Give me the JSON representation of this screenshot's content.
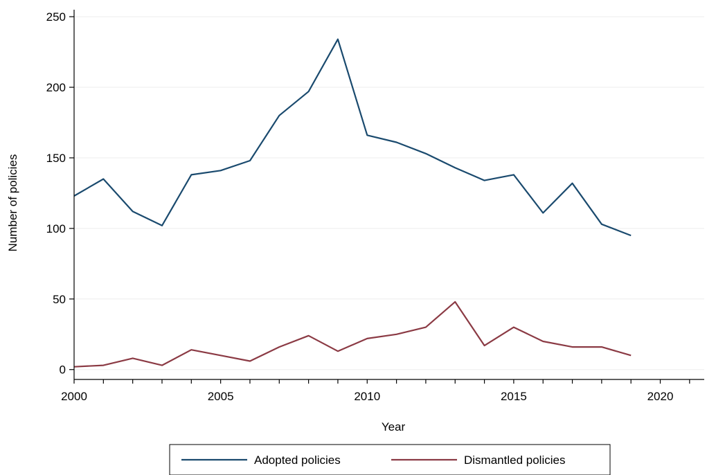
{
  "chart_data": {
    "type": "line",
    "title": "",
    "xlabel": "Year",
    "ylabel": "Number of policies",
    "xlim": [
      2000,
      2021.5
    ],
    "ylim": [
      -7,
      253
    ],
    "x_ticks": [
      2000,
      2005,
      2010,
      2015,
      2020
    ],
    "y_ticks": [
      0,
      50,
      100,
      150,
      200,
      250
    ],
    "grid": "horizontal",
    "legend_position": "bottom",
    "x": [
      2000,
      2001,
      2002,
      2003,
      2004,
      2005,
      2006,
      2007,
      2008,
      2009,
      2010,
      2011,
      2012,
      2013,
      2014,
      2015,
      2016,
      2017,
      2018,
      2019
    ],
    "series": [
      {
        "name": "Adopted policies",
        "color": "#1a4a6e",
        "values": [
          123,
          135,
          112,
          102,
          138,
          141,
          148,
          180,
          197,
          234,
          166,
          161,
          153,
          143,
          134,
          138,
          111,
          132,
          103,
          95
        ]
      },
      {
        "name": "Dismantled policies",
        "color": "#8b3a44",
        "values": [
          2,
          3,
          8,
          3,
          14,
          10,
          6,
          16,
          24,
          13,
          22,
          25,
          30,
          48,
          17,
          30,
          20,
          16,
          16,
          10
        ]
      }
    ]
  }
}
